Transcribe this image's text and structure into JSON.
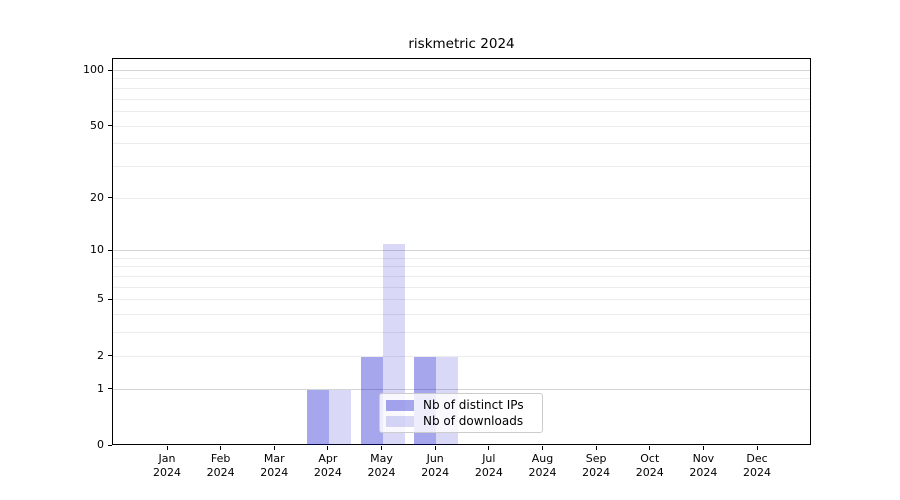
{
  "chart_data": {
    "type": "bar",
    "title": "riskmetric 2024",
    "x_months": [
      "Jan",
      "Feb",
      "Mar",
      "Apr",
      "May",
      "Jun",
      "Jul",
      "Aug",
      "Sep",
      "Oct",
      "Nov",
      "Dec"
    ],
    "x_year": "2024",
    "series": [
      {
        "name": "Nb of distinct IPs",
        "color": "rgba(0,0,204,0.35)",
        "color_hex": "#a6a6f7",
        "values": [
          0,
          0,
          0,
          1,
          2,
          2,
          0,
          0,
          0,
          0,
          0,
          0
        ]
      },
      {
        "name": "Nb of downloads",
        "color": "rgba(0,0,204,0.15)",
        "color_hex": "#d9d9f7",
        "values": [
          0,
          0,
          0,
          1,
          11,
          2,
          0,
          0,
          0,
          0,
          0,
          0
        ]
      }
    ],
    "y_scale": "log1p",
    "y_axis_ticks": [
      0,
      1,
      2,
      5,
      10,
      20,
      50,
      100
    ],
    "y_range": [
      0,
      100
    ],
    "grid": "on",
    "legend_position": "lower center-right inside plot"
  },
  "colors": {
    "major_grid": "#d4d4d4",
    "minor_grid": "#ececec",
    "spine": "#000000",
    "legend_border": "#cccccc"
  }
}
